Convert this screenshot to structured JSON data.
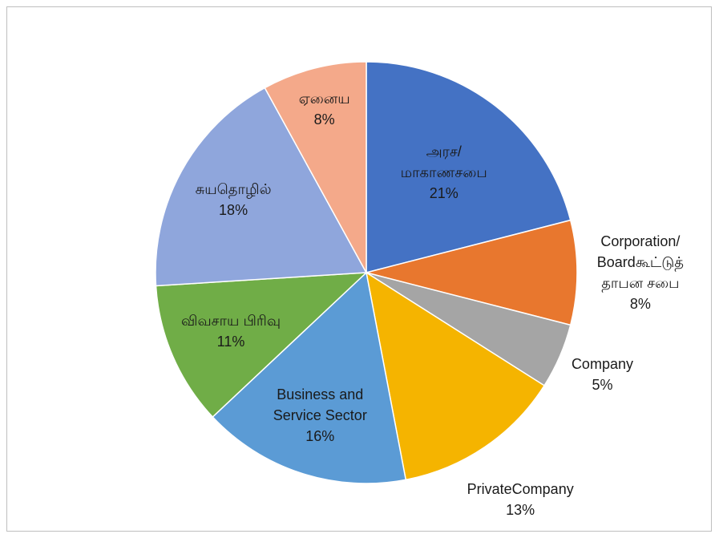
{
  "chart_data": {
    "type": "pie",
    "categories": [
      "அரச/ மாகாணசபை",
      "Corporation/ Boardகூட்டுத் தாபன சபை",
      "Company",
      "PrivateCompany",
      "Business and Service Sector",
      "விவசாய பிரிவு",
      "சுயதொழில்",
      "ஏனைய"
    ],
    "values": [
      21,
      8,
      5,
      13,
      16,
      11,
      18,
      8
    ],
    "value_labels": [
      "21%",
      "8%",
      "5%",
      "13%",
      "16%",
      "11%",
      "18%",
      "8%"
    ],
    "colors": [
      "#4472c4",
      "#e8772e",
      "#a5a5a5",
      "#f5b400",
      "#5b9bd5",
      "#70ad47",
      "#8fa6dc",
      "#f4a98a"
    ]
  }
}
